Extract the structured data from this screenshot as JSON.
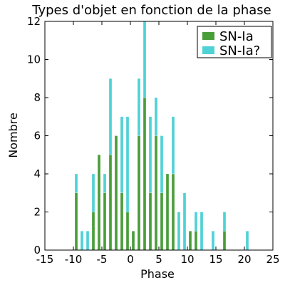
{
  "chart_data": {
    "type": "bar",
    "title": "Types d'objet en fonction de la phase",
    "xlabel": "Phase",
    "ylabel": "Nombre",
    "xlim": [
      -15,
      25
    ],
    "ylim": [
      0,
      12
    ],
    "x_ticks": [
      -15,
      -10,
      -5,
      0,
      5,
      10,
      15,
      20,
      25
    ],
    "y_ticks": [
      0,
      2,
      4,
      6,
      8,
      10,
      12
    ],
    "stacked": true,
    "legend_position": "top-right",
    "series": [
      {
        "name": "SN-Ia",
        "color": "#4a9e3a",
        "points": [
          [
            -9.5,
            3
          ],
          [
            -8.5,
            0
          ],
          [
            -7.5,
            0
          ],
          [
            -6.5,
            2
          ],
          [
            -5.5,
            5
          ],
          [
            -4.5,
            3
          ],
          [
            -3.5,
            5
          ],
          [
            -2.5,
            6
          ],
          [
            -1.5,
            3
          ],
          [
            -0.5,
            2
          ],
          [
            0.5,
            1
          ],
          [
            1.5,
            6
          ],
          [
            2.5,
            8
          ],
          [
            3.5,
            3
          ],
          [
            4.5,
            6
          ],
          [
            5.5,
            3
          ],
          [
            6.5,
            4
          ],
          [
            7.5,
            4
          ],
          [
            8.5,
            0
          ],
          [
            9.5,
            0
          ],
          [
            10.5,
            1
          ],
          [
            11.5,
            1
          ],
          [
            12.5,
            0
          ],
          [
            14.5,
            0
          ],
          [
            16.5,
            1
          ],
          [
            20.5,
            0
          ]
        ]
      },
      {
        "name": "SN-Ia?",
        "color": "#4fd2d6",
        "points": [
          [
            -9.5,
            1
          ],
          [
            -8.5,
            1
          ],
          [
            -7.5,
            1
          ],
          [
            -6.5,
            2
          ],
          [
            -5.5,
            0
          ],
          [
            -4.5,
            1
          ],
          [
            -3.5,
            4
          ],
          [
            -2.5,
            0
          ],
          [
            -1.5,
            4
          ],
          [
            -0.5,
            5
          ],
          [
            0.5,
            0
          ],
          [
            1.5,
            3
          ],
          [
            2.5,
            4
          ],
          [
            3.5,
            4
          ],
          [
            4.5,
            2
          ],
          [
            5.5,
            3
          ],
          [
            6.5,
            0
          ],
          [
            7.5,
            3
          ],
          [
            8.5,
            2
          ],
          [
            9.5,
            3
          ],
          [
            10.5,
            0
          ],
          [
            11.5,
            1
          ],
          [
            12.5,
            2
          ],
          [
            14.5,
            1
          ],
          [
            16.5,
            1
          ],
          [
            20.5,
            1
          ]
        ]
      }
    ],
    "grid": false
  }
}
